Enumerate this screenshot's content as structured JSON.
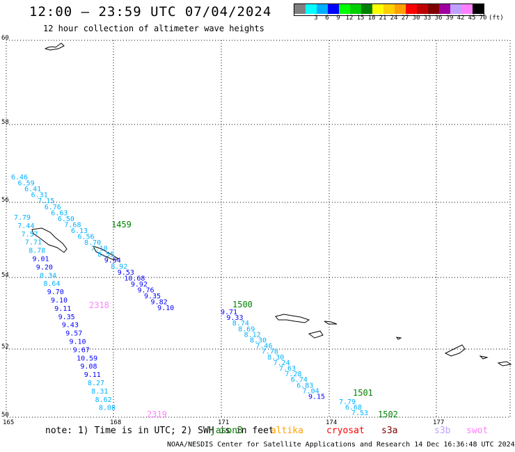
{
  "title": "12:00 — 23:59 UTC 07/04/2024",
  "subtitle": "12 hour collection of altimeter wave heights",
  "scale": {
    "colors": [
      "#808080",
      "#00ffff",
      "#00b0ff",
      "#0000ff",
      "#00ff00",
      "#00d000",
      "#008000",
      "#ffff00",
      "#ffd000",
      "#ffa000",
      "#ff0000",
      "#c00000",
      "#800000",
      "#a000a0",
      "#c0a0ff",
      "#ff80ff",
      "#000000"
    ],
    "labels": [
      "3",
      "6",
      "9",
      "12",
      "15",
      "18",
      "21",
      "24",
      "27",
      "30",
      "33",
      "36",
      "39",
      "42",
      "45",
      "70"
    ],
    "unit": "(ft)"
  },
  "axes": {
    "lat_labels": [
      "60",
      "58",
      "56",
      "54",
      "52",
      "50"
    ],
    "lon_labels": [
      "165",
      "168",
      "171",
      "174",
      "177"
    ]
  },
  "tracks": [
    {
      "time": "1459",
      "time_color": "#008000",
      "points": [
        {
          "v": "6.46",
          "c": "#00b0ff"
        },
        {
          "v": "6.59",
          "c": "#00b0ff"
        },
        {
          "v": "6.41",
          "c": "#00b0ff"
        },
        {
          "v": "6.31",
          "c": "#00b0ff"
        },
        {
          "v": "7.15",
          "c": "#00b0ff"
        },
        {
          "v": "6.76",
          "c": "#00b0ff"
        },
        {
          "v": "6.63",
          "c": "#00b0ff"
        },
        {
          "v": "6.50",
          "c": "#00b0ff"
        },
        {
          "v": "7.68",
          "c": "#00b0ff"
        },
        {
          "v": "6.13",
          "c": "#00b0ff"
        },
        {
          "v": "6.56",
          "c": "#00b0ff"
        },
        {
          "v": "8.70",
          "c": "#00b0ff"
        },
        {
          "v": "7.10",
          "c": "#00b0ff"
        },
        {
          "v": "8.55",
          "c": "#00b0ff"
        },
        {
          "v": "9.54",
          "c": "#0000ff"
        },
        {
          "v": "8.92",
          "c": "#00b0ff"
        },
        {
          "v": "9.53",
          "c": "#0000ff"
        },
        {
          "v": "10.68",
          "c": "#0000ff"
        },
        {
          "v": "9.92",
          "c": "#0000ff"
        },
        {
          "v": "9.76",
          "c": "#0000ff"
        },
        {
          "v": "9.35",
          "c": "#0000ff"
        },
        {
          "v": "9.82",
          "c": "#0000ff"
        },
        {
          "v": "9.10",
          "c": "#0000ff"
        }
      ]
    },
    {
      "time": "1500",
      "time_color": "#008000",
      "points": [
        {
          "v": "9.71",
          "c": "#0000ff"
        },
        {
          "v": "9.33",
          "c": "#0000ff"
        },
        {
          "v": "8.74",
          "c": "#00b0ff"
        },
        {
          "v": "8.69",
          "c": "#00b0ff"
        },
        {
          "v": "8.12",
          "c": "#00b0ff"
        },
        {
          "v": "8.30",
          "c": "#00b0ff"
        },
        {
          "v": "7.46",
          "c": "#00b0ff"
        },
        {
          "v": "7.78",
          "c": "#00b0ff"
        },
        {
          "v": "8.30",
          "c": "#00b0ff"
        },
        {
          "v": "7.24",
          "c": "#00b0ff"
        },
        {
          "v": "7.63",
          "c": "#00b0ff"
        },
        {
          "v": "7.28",
          "c": "#00b0ff"
        },
        {
          "v": "6.74",
          "c": "#00b0ff"
        },
        {
          "v": "6.83",
          "c": "#00b0ff"
        },
        {
          "v": "7.04",
          "c": "#00b0ff"
        },
        {
          "v": "9.15",
          "c": "#0000ff"
        }
      ]
    },
    {
      "time": "1501",
      "time_color": "#008000",
      "points": [
        {
          "v": "7.79",
          "c": "#00b0ff"
        },
        {
          "v": "6.68",
          "c": "#00b0ff"
        },
        {
          "v": "7.53",
          "c": "#00b0ff"
        }
      ]
    },
    {
      "time": "1502",
      "time_color": "#008000",
      "points": []
    },
    {
      "time": "2318",
      "time_color": "#ff80ff",
      "points": [
        {
          "v": "7.79",
          "c": "#00b0ff"
        },
        {
          "v": "7.44",
          "c": "#00b0ff"
        },
        {
          "v": "7.57",
          "c": "#00b0ff"
        },
        {
          "v": "7.71",
          "c": "#00b0ff"
        },
        {
          "v": "8.78",
          "c": "#00b0ff"
        },
        {
          "v": "9.01",
          "c": "#0000ff"
        },
        {
          "v": "9.20",
          "c": "#0000ff"
        },
        {
          "v": "8.34",
          "c": "#00b0ff"
        },
        {
          "v": "8.64",
          "c": "#00b0ff"
        },
        {
          "v": "9.70",
          "c": "#0000ff"
        },
        {
          "v": "9.10",
          "c": "#0000ff"
        },
        {
          "v": "9.11",
          "c": "#0000ff"
        },
        {
          "v": "9.35",
          "c": "#0000ff"
        },
        {
          "v": "9.43",
          "c": "#0000ff"
        },
        {
          "v": "9.57",
          "c": "#0000ff"
        },
        {
          "v": "9.10",
          "c": "#0000ff"
        },
        {
          "v": "9.67",
          "c": "#0000ff"
        },
        {
          "v": "10.59",
          "c": "#0000ff"
        },
        {
          "v": "9.08",
          "c": "#0000ff"
        },
        {
          "v": "9.11",
          "c": "#0000ff"
        },
        {
          "v": "8.27",
          "c": "#00b0ff"
        },
        {
          "v": "8.31",
          "c": "#00b0ff"
        },
        {
          "v": "8.62",
          "c": "#00b0ff"
        },
        {
          "v": "8.08",
          "c": "#00b0ff"
        }
      ]
    },
    {
      "time": "2319",
      "time_color": "#ff80ff",
      "points": []
    }
  ],
  "footer": {
    "note": "note:  1) Time is in UTC; 2) SWH is in feet",
    "credit": "NOAA/NESDIS Center for Satellite Applications and Research   14 Dec 16:36:48 UTC 2024"
  },
  "legend": [
    {
      "name": "jason3",
      "color": "#008000"
    },
    {
      "name": "altika",
      "color": "#ffa000"
    },
    {
      "name": "cryosat",
      "color": "#ff0000"
    },
    {
      "name": "s3a",
      "color": "#800000"
    },
    {
      "name": "s3b",
      "color": "#c0a0ff"
    },
    {
      "name": "swot",
      "color": "#ff80ff"
    }
  ]
}
